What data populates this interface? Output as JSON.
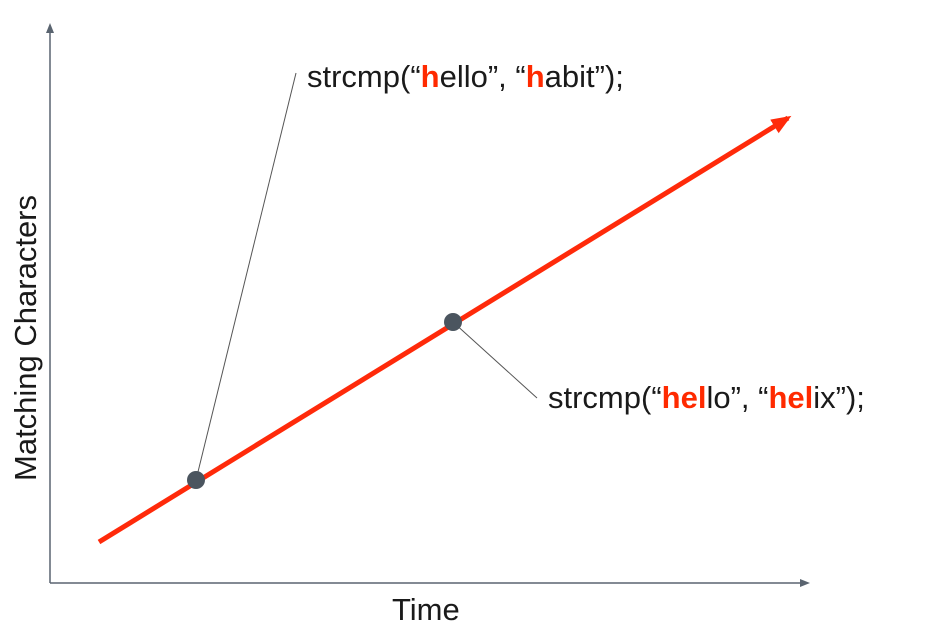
{
  "colors": {
    "axis": "#5a6470",
    "line": "#ff2a0a",
    "point": "#4b555f",
    "leader": "#555555",
    "highlight": "#ff2a00",
    "text": "#1a1a1a"
  },
  "axes": {
    "x_label": "Time",
    "y_label": "Matching Characters"
  },
  "trend_line": {
    "direction": "increasing",
    "arrow": true
  },
  "annotations": [
    {
      "id": "habit",
      "prefix": "strcmp(“",
      "s1_match": "h",
      "s1_rest": "ello",
      "middle": "”, “",
      "s2_match": "h",
      "s2_rest": "abit",
      "suffix": "”);",
      "matching_characters": 1
    },
    {
      "id": "helix",
      "prefix": "strcmp(“",
      "s1_match": "hel",
      "s1_rest": "lo",
      "middle": "”, “",
      "s2_match": "hel",
      "s2_rest": "ix",
      "suffix": "”);",
      "matching_characters": 3
    }
  ]
}
